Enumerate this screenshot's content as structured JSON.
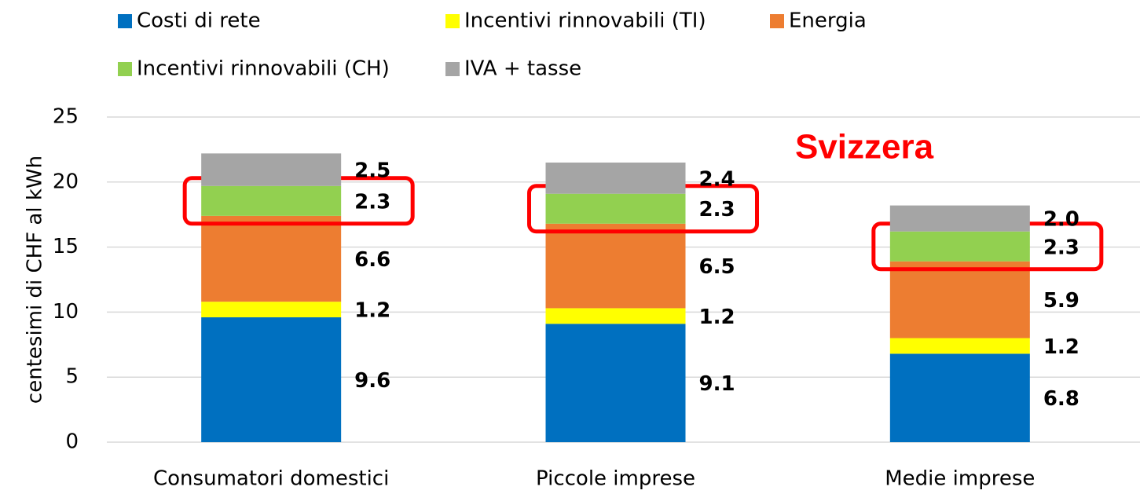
{
  "chart_data": {
    "type": "stacked_bar",
    "y_label": "centesimi di CHF al kWh",
    "annotation": "Svizzera",
    "categories": [
      "Consumatori domestici",
      "Piccole imprese",
      "Medie imprese"
    ],
    "series": [
      {
        "name": "Costi di rete",
        "color": "#0070c0",
        "values": [
          9.6,
          9.1,
          6.8
        ]
      },
      {
        "name": "Incentivi rinnovabili (TI)",
        "color": "#ffff00",
        "values": [
          1.2,
          1.2,
          1.2
        ]
      },
      {
        "name": "Energia",
        "color": "#ed7d31",
        "values": [
          6.6,
          6.5,
          5.9
        ]
      },
      {
        "name": "Incentivi rinnovabili (CH)",
        "color": "#92d050",
        "values": [
          2.3,
          2.3,
          2.3
        ]
      },
      {
        "name": "IVA + tasse",
        "color": "#a5a5a5",
        "values": [
          2.5,
          2.4,
          2.0
        ],
        "value_labels": [
          "2.5",
          "2.4",
          "2.0"
        ]
      }
    ],
    "ylim": [
      0,
      25
    ],
    "yticks": [
      0,
      5,
      10,
      15,
      20,
      25
    ],
    "grid": true,
    "highlight_series": 3,
    "highlight_color": "#ff0000"
  }
}
